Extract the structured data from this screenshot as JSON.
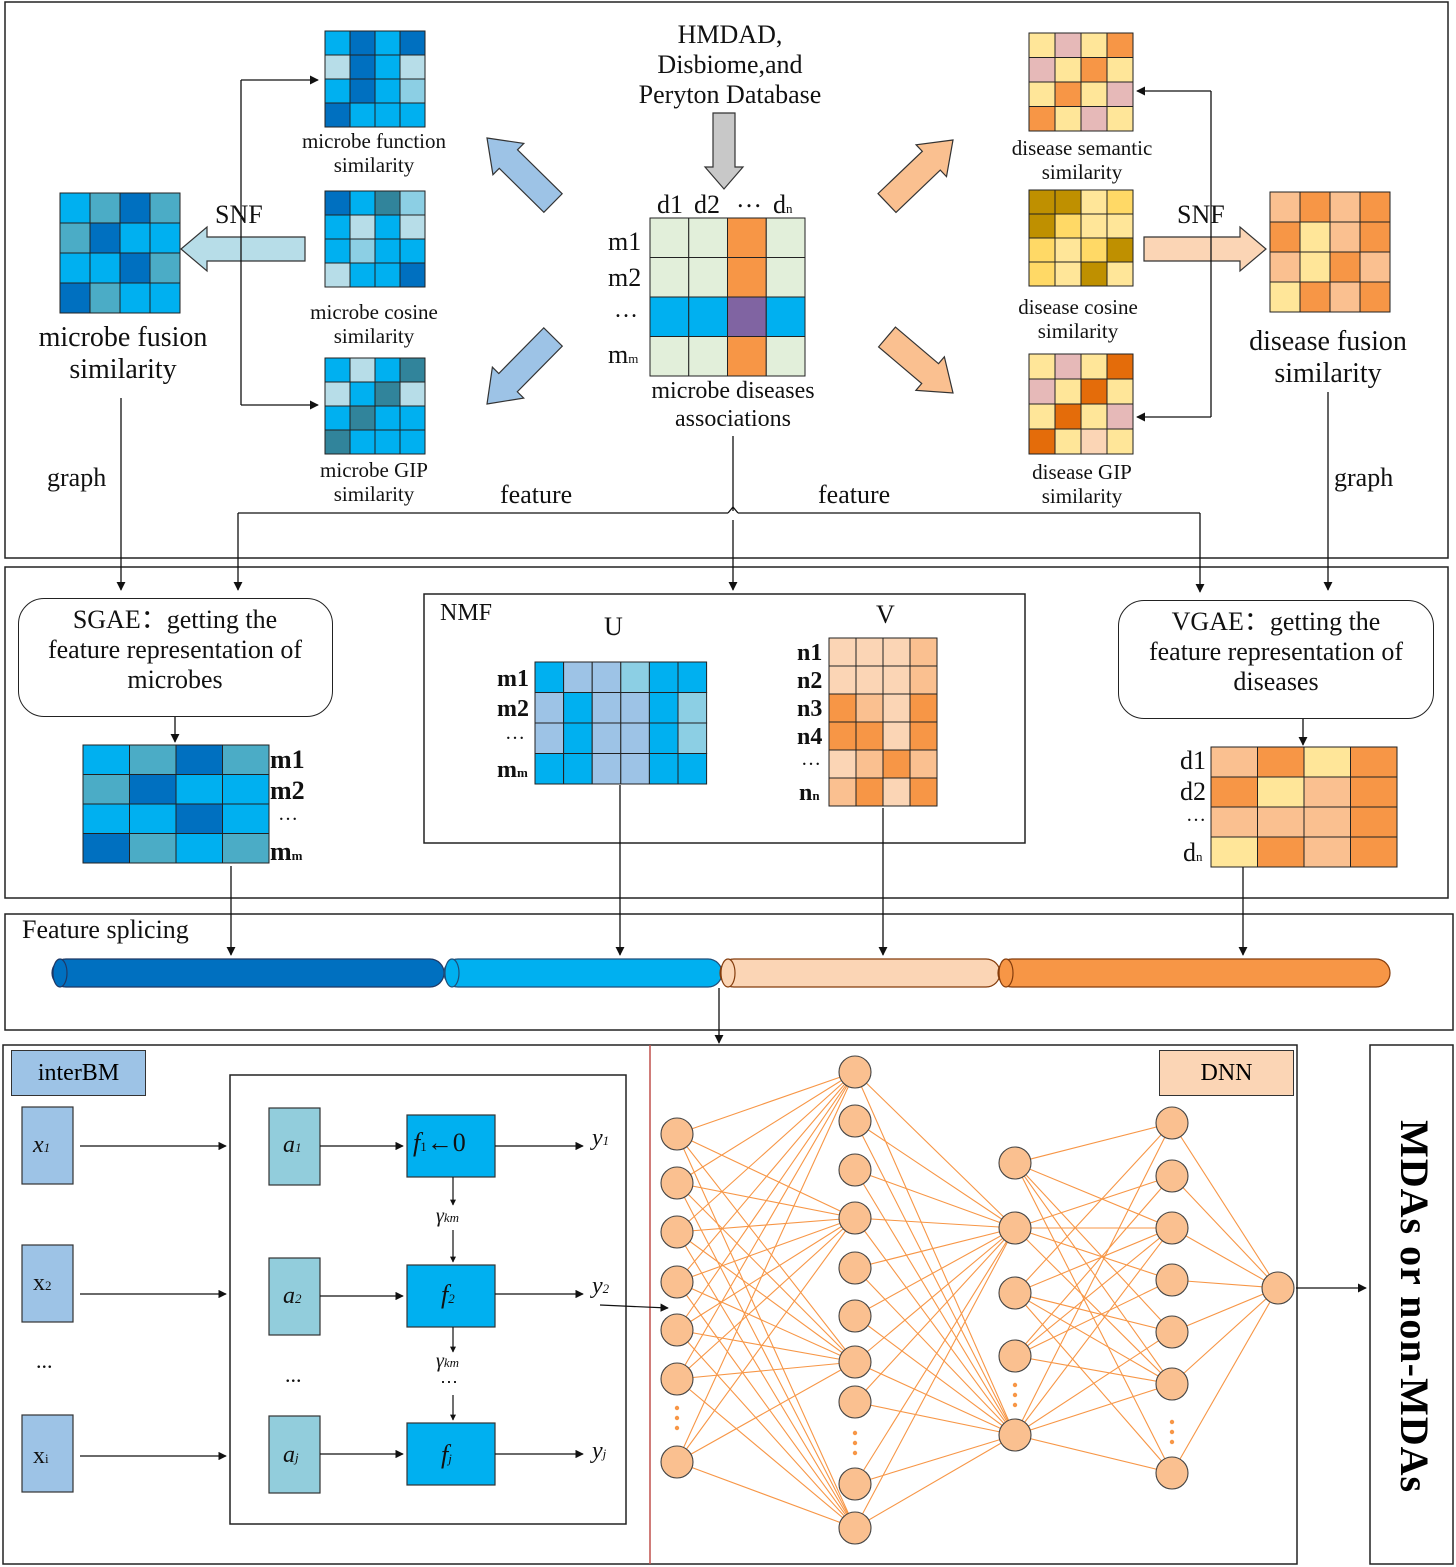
{
  "colors": {
    "microbe_blues": [
      "#0070c0",
      "#00b0f0",
      "#4bacc6",
      "#9dc3e6",
      "#31849b",
      "#b7dde8",
      "#8ccfe4"
    ],
    "disease_oranges": [
      "#f79646",
      "#fac090",
      "#ffe699",
      "#fbd5b5",
      "#e46c0a",
      "#bf9000",
      "#ffd966",
      "#e6b9b8"
    ],
    "assoc_light": "#e2efda",
    "assoc_overlap": "#8064a2",
    "dnn_node": "#fac090",
    "dnn_edge": "#f79646"
  },
  "top": {
    "database": [
      "HMDAD,",
      "Disbiome,and",
      "Peryton Database"
    ],
    "assoc_matrix": {
      "col_labels": [
        "d1",
        "d2",
        "…",
        "dn"
      ],
      "row_labels": [
        "m1",
        "m2",
        "…",
        "mm"
      ],
      "caption": [
        "microbe diseases",
        "associations"
      ]
    },
    "microbe_function": [
      "microbe function",
      "similarity"
    ],
    "microbe_cosine": [
      "microbe cosine",
      "similarity"
    ],
    "microbe_gip": [
      "microbe GIP",
      "similarity"
    ],
    "microbe_fusion": [
      "microbe fusion",
      "similarity"
    ],
    "disease_semantic": [
      "disease semantic",
      "similarity"
    ],
    "disease_cosine": [
      "disease cosine",
      "similarity"
    ],
    "disease_gip": [
      "disease GIP",
      "similarity"
    ],
    "disease_fusion": [
      "disease fusion",
      "similarity"
    ],
    "snf_left": "SNF",
    "snf_right": "SNF",
    "graph_left": "graph",
    "graph_right": "graph",
    "feature_left": "feature",
    "feature_right": "feature"
  },
  "middle": {
    "sgae": [
      "SGAE：getting the",
      "feature representation of",
      "microbes"
    ],
    "vgae": [
      "VGAE：getting the",
      "feature representation of",
      "diseases"
    ],
    "nmf": "NMF",
    "u": "U",
    "v": "V",
    "u_rows": [
      "m1",
      "m2",
      "…",
      "mm"
    ],
    "v_rows": [
      "n1",
      "n2",
      "n3",
      "n4",
      "…",
      "nn"
    ],
    "sgae_rows": [
      "m1",
      "m2",
      "…",
      "mm"
    ],
    "vgae_rows": [
      "d1",
      "d2",
      "…",
      "dn"
    ]
  },
  "splice": {
    "label": "Feature splicing"
  },
  "bottom": {
    "interbm": "interBM",
    "inputs": [
      "x1",
      "x2",
      "...",
      "xi"
    ],
    "a_nodes": [
      "a1",
      "a2",
      "...",
      "aj"
    ],
    "f_nodes": [
      "f1←0",
      "f2",
      "fj"
    ],
    "outputs": [
      "y1",
      "y2",
      "yj"
    ],
    "gamma": "γkm",
    "dots": "⋮",
    "dnn": "DNN",
    "result": "MDAs or non-MDAs"
  }
}
